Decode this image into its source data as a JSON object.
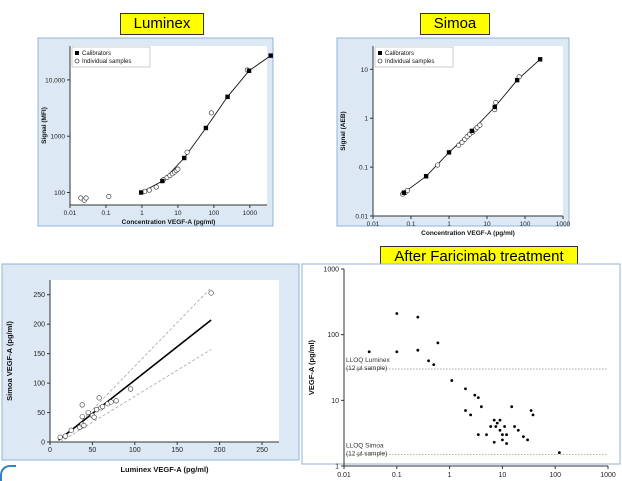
{
  "banners": {
    "luminex": "Luminex",
    "simoa": "Simoa",
    "after": "After Faricimab treatment"
  },
  "colors": {
    "banner": "#ffff00",
    "panel_bg": "#dce9f5",
    "panel_border": "#8fb4d8"
  },
  "chart_data": [
    {
      "id": "luminex",
      "type": "scatter",
      "xlabel": "Concentration VEGF-A (pg/ml)",
      "ylabel": "Signal (MFI)",
      "xscale": "log",
      "yscale": "log",
      "xlim": [
        0.01,
        3000
      ],
      "ylim": [
        60,
        40000
      ],
      "xticks": [
        0.01,
        0.1,
        1,
        10,
        100,
        1000
      ],
      "xtick_labels": [
        "0.01",
        "0.1",
        "1",
        "10",
        "100",
        "1000"
      ],
      "yticks": [
        100,
        1000,
        10000
      ],
      "ytick_labels": [
        "100",
        "1000",
        "10,000"
      ],
      "legend": [
        "Calibrators",
        "Individual samples"
      ],
      "legend_position": "top-left",
      "curve": "four-parameter logistic fit",
      "series": [
        {
          "name": "Calibrators",
          "marker": "square",
          "points": [
            [
              0.95,
              100
            ],
            [
              3.7,
              160
            ],
            [
              15,
              410
            ],
            [
              60,
              1400
            ],
            [
              240,
              5000
            ],
            [
              950,
              14500
            ],
            [
              3800,
              27000
            ]
          ]
        },
        {
          "name": "Individual samples",
          "marker": "circle",
          "points": [
            [
              0.02,
              80
            ],
            [
              0.025,
              73
            ],
            [
              0.028,
              80
            ],
            [
              0.12,
              85
            ],
            [
              1.2,
              105
            ],
            [
              1.6,
              110
            ],
            [
              2.5,
              125
            ],
            [
              4,
              170
            ],
            [
              5,
              185
            ],
            [
              6,
              200
            ],
            [
              7,
              215
            ],
            [
              8,
              230
            ],
            [
              9,
              245
            ],
            [
              10,
              260
            ],
            [
              18,
              520
            ],
            [
              85,
              2600
            ],
            [
              850,
              15000
            ]
          ]
        }
      ]
    },
    {
      "id": "simoa",
      "type": "scatter",
      "xlabel": "Concentration VEGF-A (pg/ml)",
      "ylabel": "Signal (AEB)",
      "xscale": "log",
      "yscale": "log",
      "xlim": [
        0.01,
        1000
      ],
      "ylim": [
        0.01,
        30
      ],
      "xticks": [
        0.01,
        0.1,
        1,
        10,
        100,
        1000
      ],
      "xtick_labels": [
        "0.01",
        "0.1",
        "1",
        "10",
        "100",
        "1000"
      ],
      "yticks": [
        0.01,
        0.1,
        1,
        10
      ],
      "ytick_labels": [
        "0.01",
        "0.1",
        "1",
        "10"
      ],
      "legend": [
        "Calibrators",
        "Individual samples"
      ],
      "legend_position": "top-left",
      "series": [
        {
          "name": "Calibrators",
          "marker": "square",
          "points": [
            [
              0.065,
              0.03
            ],
            [
              0.25,
              0.065
            ],
            [
              1,
              0.2
            ],
            [
              4,
              0.55
            ],
            [
              16,
              1.7
            ],
            [
              62,
              6
            ],
            [
              250,
              16
            ]
          ]
        },
        {
          "name": "Individual samples",
          "marker": "circle",
          "points": [
            [
              0.06,
              0.028
            ],
            [
              0.07,
              0.03
            ],
            [
              0.08,
              0.033
            ],
            [
              0.5,
              0.11
            ],
            [
              1.8,
              0.28
            ],
            [
              2.2,
              0.32
            ],
            [
              2.6,
              0.37
            ],
            [
              3,
              0.42
            ],
            [
              3.5,
              0.47
            ],
            [
              4.2,
              0.52
            ],
            [
              5,
              0.6
            ],
            [
              5.5,
              0.65
            ],
            [
              6.5,
              0.72
            ],
            [
              17,
              2.1
            ],
            [
              16,
              1.5
            ],
            [
              70,
              7
            ]
          ]
        }
      ]
    },
    {
      "id": "comparison",
      "type": "scatter",
      "xlabel": "Luminex VEGF-A (pg/ml)",
      "ylabel": "Simoa VEGF-A (pg/ml)",
      "xlim": [
        0,
        270
      ],
      "ylim": [
        0,
        275
      ],
      "xticks": [
        0,
        50,
        100,
        150,
        200,
        250
      ],
      "yticks": [
        0,
        50,
        100,
        150,
        200,
        250
      ],
      "regression": {
        "x": [
          10,
          190
        ],
        "y": [
          3,
          207
        ]
      },
      "confidence_band": {
        "upper": [
          [
            30,
            25
          ],
          [
            190,
            262
          ]
        ],
        "lower": [
          [
            12,
            0
          ],
          [
            190,
            157
          ]
        ]
      },
      "points": [
        [
          12,
          8
        ],
        [
          18,
          10
        ],
        [
          25,
          20
        ],
        [
          35,
          25
        ],
        [
          38,
          30
        ],
        [
          38,
          43
        ],
        [
          40,
          28
        ],
        [
          45,
          50
        ],
        [
          50,
          45
        ],
        [
          52,
          42
        ],
        [
          55,
          55
        ],
        [
          58,
          75
        ],
        [
          60,
          58
        ],
        [
          62,
          60
        ],
        [
          68,
          65
        ],
        [
          72,
          68
        ],
        [
          78,
          70
        ],
        [
          95,
          90
        ],
        [
          190,
          253
        ],
        [
          38,
          63
        ]
      ]
    },
    {
      "id": "after",
      "type": "scatter",
      "ylabel": "VEGF-A (pg/ml)",
      "xscale": "log",
      "yscale": "log",
      "xlim": [
        0.01,
        1000
      ],
      "ylim": [
        1,
        1000
      ],
      "xticks": [
        0.01,
        0.1,
        1,
        10,
        100,
        1000
      ],
      "xtick_labels": [
        "0.01",
        "0.1",
        "1",
        "10",
        "100",
        "1000"
      ],
      "yticks": [
        1,
        10,
        100,
        1000
      ],
      "ytick_labels": [
        "1",
        "10",
        "100",
        "1000"
      ],
      "reference_lines": [
        {
          "y": 30,
          "label1": "LLOQ Luminex",
          "label2": "(12 µl sample)"
        },
        {
          "y": 1.5,
          "label1": "LLOQ Simoa",
          "label2": "(12 µl sample)"
        }
      ],
      "points": [
        [
          0.1,
          210
        ],
        [
          0.25,
          185
        ],
        [
          0.25,
          58
        ],
        [
          0.03,
          55
        ],
        [
          0.1,
          55
        ],
        [
          0.4,
          40
        ],
        [
          0.5,
          35
        ],
        [
          0.6,
          75
        ],
        [
          1.1,
          20
        ],
        [
          2,
          15
        ],
        [
          2,
          7
        ],
        [
          2.5,
          6
        ],
        [
          3,
          12
        ],
        [
          3.5,
          11
        ],
        [
          3.5,
          3
        ],
        [
          4,
          8
        ],
        [
          5,
          3
        ],
        [
          6,
          4
        ],
        [
          7,
          5
        ],
        [
          7,
          2.3
        ],
        [
          7.5,
          4
        ],
        [
          8,
          4.5
        ],
        [
          9,
          5
        ],
        [
          9,
          3.5
        ],
        [
          10,
          3
        ],
        [
          10,
          2.5
        ],
        [
          11,
          4
        ],
        [
          12,
          3
        ],
        [
          12,
          2.2
        ],
        [
          15,
          8
        ],
        [
          17,
          4
        ],
        [
          20,
          3.5
        ],
        [
          25,
          2.8
        ],
        [
          30,
          2.5
        ],
        [
          35,
          7
        ],
        [
          38,
          6
        ],
        [
          120,
          1.6
        ]
      ]
    }
  ]
}
